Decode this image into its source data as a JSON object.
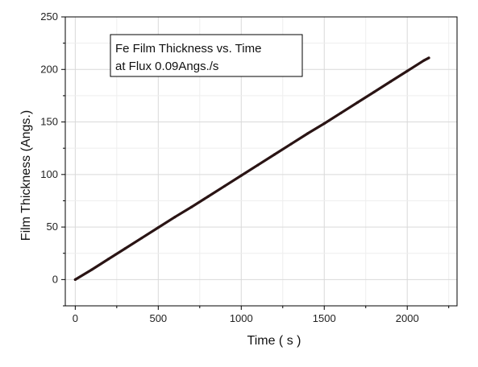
{
  "chart_data": {
    "type": "line",
    "title": "",
    "xlabel": "Time ( s )",
    "ylabel": "Film Thickness (Angs.)",
    "xlim": [
      -60,
      2300
    ],
    "ylim": [
      -25,
      250
    ],
    "xticks": [
      0,
      500,
      1000,
      1500,
      2000
    ],
    "yticks": [
      0,
      50,
      100,
      150,
      200,
      250
    ],
    "grid": true,
    "legend": "none",
    "annotation": {
      "line1": "Fe Film Thickness vs. Time",
      "line2": "at Flux 0.09Angs./s"
    },
    "series": [
      {
        "color": "#2a1414",
        "x": [
          0,
          100,
          200,
          300,
          400,
          500,
          600,
          700,
          800,
          900,
          1000,
          1100,
          1200,
          1300,
          1400,
          1500,
          1600,
          1700,
          1800,
          1900,
          2000,
          2100,
          2130
        ],
        "y": [
          0,
          9.5,
          19.5,
          29.5,
          39.5,
          49.5,
          59.5,
          69,
          79,
          89,
          99,
          109,
          119,
          129,
          139,
          148.5,
          158.5,
          168.5,
          178.5,
          188.5,
          198.5,
          208.5,
          211
        ]
      }
    ]
  }
}
